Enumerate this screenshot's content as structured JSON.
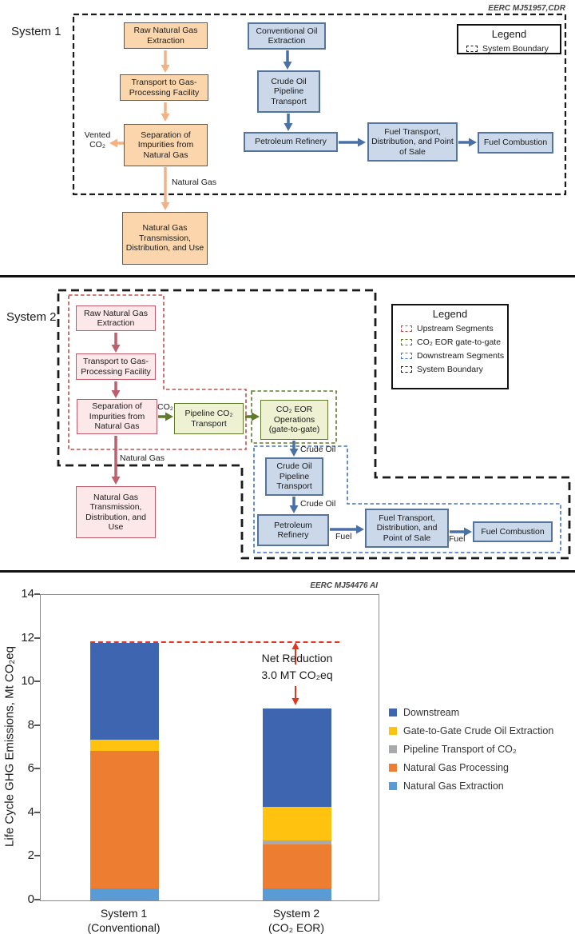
{
  "diagram1": {
    "credit": "EERC MJ51957,CDR",
    "title": "System 1",
    "legend": {
      "title": "Legend",
      "items": [
        {
          "label": "System Boundary",
          "color": "#1A1A1A"
        }
      ]
    },
    "boxes": {
      "raw_gas": "Raw Natural Gas Extraction",
      "transport": "Transport to Gas-Processing Facility",
      "separation": "Separation of Impurities from Natural Gas",
      "ng_tdu": "Natural Gas Transmission, Distribution, and Use",
      "conv_oil": "Conventional Oil Extraction",
      "crude_pipeline": "Crude Oil Pipeline Transport",
      "refinery": "Petroleum Refinery",
      "fuel_tdp": "Fuel Transport, Distribution, and Point of Sale",
      "fuel_combustion": "Fuel Combustion"
    },
    "flow_labels": {
      "vented_co2": "Vented CO₂",
      "natural_gas": "Natural Gas"
    }
  },
  "diagram2": {
    "title": "System 2",
    "legend": {
      "title": "Legend",
      "items": [
        {
          "label": "Upstream Segments",
          "color": "#C0504D"
        },
        {
          "label": "CO₂ EOR gate-to-gate",
          "color": "#5F7A28"
        },
        {
          "label": "Downstream Segments",
          "color": "#4472C4"
        },
        {
          "label": "System Boundary",
          "color": "#1A1A1A"
        }
      ]
    },
    "boxes": {
      "raw_gas": "Raw Natural Gas Extraction",
      "transport": "Transport to Gas-Processing Facility",
      "separation": "Separation of Impurities from Natural Gas",
      "ng_tdu": "Natural Gas Transmission, Distribution, and Use",
      "co2_pipeline": "Pipeline CO₂ Transport",
      "eor": "CO₂ EOR Operations (gate-to-gate)",
      "crude_pipeline": "Crude Oil Pipeline Transport",
      "refinery": "Petroleum Refinery",
      "fuel_tdp": "Fuel Transport, Distribution, and Point of Sale",
      "fuel_combustion": "Fuel Combustion"
    },
    "flow_labels": {
      "co2": "CO₂",
      "natural_gas": "Natural Gas",
      "crude_oil_1": "Crude Oil",
      "crude_oil_2": "Crude Oil",
      "fuel_1": "Fuel",
      "fuel_2": "Fuel"
    }
  },
  "chart": {
    "credit": "EERC MJ54476 AI"
  },
  "chart_data": {
    "type": "bar",
    "stacked": true,
    "title": "",
    "xlabel": "",
    "ylabel": "Life Cycle GHG Emissions, Mt CO₂eq",
    "ylim": [
      0,
      14
    ],
    "yticks": [
      0,
      2,
      4,
      6,
      8,
      10,
      12,
      14
    ],
    "grid": false,
    "legend_position": "right",
    "categories": [
      "System 1 (Conventional)",
      "System 2 (CO₂ EOR)"
    ],
    "category_lines": [
      [
        "System 1",
        "(Conventional)"
      ],
      [
        "System 2",
        "(CO₂ EOR)"
      ]
    ],
    "series": [
      {
        "name": "Natural Gas Extraction",
        "color": "#5B9BD5",
        "values": [
          0.55,
          0.55
        ]
      },
      {
        "name": "Natural Gas Processing",
        "color": "#ED7D31",
        "values": [
          6.3,
          2.0
        ]
      },
      {
        "name": "Pipeline Transport of CO₂",
        "color": "#A7A9AC",
        "values": [
          0,
          0.2
        ]
      },
      {
        "name": "Gate-to-Gate Crude Oil Extraction",
        "color": "#FFC20E",
        "values": [
          0.5,
          1.55
        ]
      },
      {
        "name": "Downstream",
        "color": "#3E66B0",
        "values": [
          4.45,
          4.5
        ]
      }
    ],
    "totals": [
      11.8,
      8.8
    ],
    "annotation": {
      "line1": "Net Reduction",
      "line2": "3.0 MT CO₂eq",
      "reference_value": 11.8,
      "color": "#E5341F"
    }
  }
}
